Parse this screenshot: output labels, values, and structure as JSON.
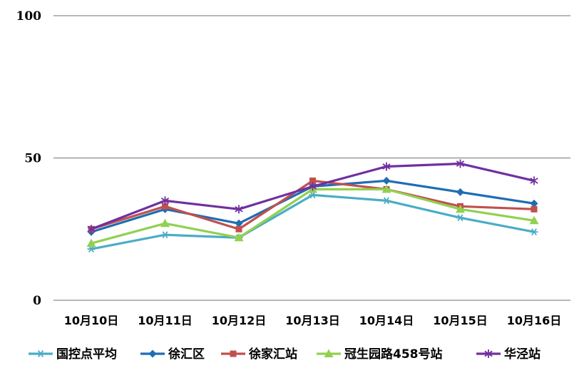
{
  "chart_data": {
    "type": "line",
    "categories": [
      "10月10日",
      "10月11日",
      "10月12日",
      "10月13日",
      "10月14日",
      "10月15日",
      "10月16日"
    ],
    "ylim": [
      0,
      100
    ],
    "yticks": [
      0,
      50,
      100
    ],
    "grid": true,
    "legend": "bottom",
    "series": [
      {
        "name": "国控点平均",
        "color": "#4bacc6",
        "marker": "star",
        "values": [
          18,
          23,
          22,
          37,
          35,
          29,
          24
        ]
      },
      {
        "name": "徐汇区",
        "color": "#1f6db3",
        "marker": "diamond",
        "values": [
          24,
          32,
          27,
          40,
          42,
          38,
          34
        ]
      },
      {
        "name": "徐家汇站",
        "color": "#c0504d",
        "marker": "square",
        "values": [
          25,
          33,
          25,
          42,
          39,
          33,
          32
        ]
      },
      {
        "name": "冠生园路458号站",
        "color": "#92d050",
        "marker": "triangle",
        "values": [
          20,
          27,
          22,
          39,
          39,
          32,
          28
        ]
      },
      {
        "name": "华泾站",
        "color": "#7030a0",
        "marker": "asterisk",
        "values": [
          25,
          35,
          32,
          40,
          47,
          48,
          42
        ]
      }
    ]
  }
}
